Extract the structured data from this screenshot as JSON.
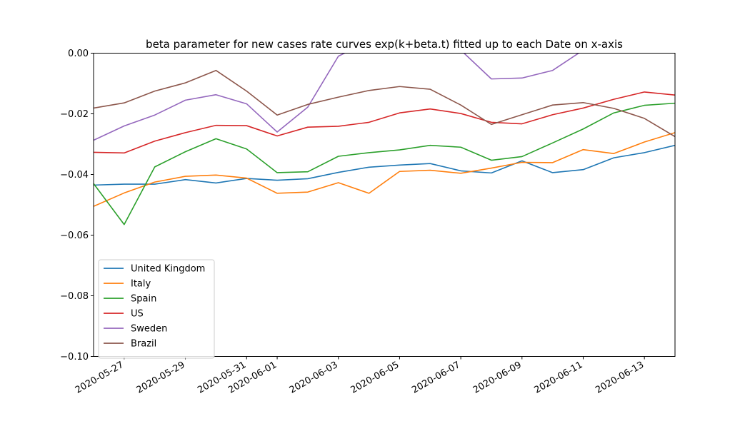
{
  "chart_data": {
    "type": "line",
    "title": "beta parameter for new cases rate curves exp(k+beta.t) fitted up to each Date on x-axis",
    "xlabel": "",
    "ylabel": "",
    "x": [
      "2020-05-26",
      "2020-05-27",
      "2020-05-28",
      "2020-05-29",
      "2020-05-30",
      "2020-05-31",
      "2020-06-01",
      "2020-06-02",
      "2020-06-03",
      "2020-06-04",
      "2020-06-05",
      "2020-06-06",
      "2020-06-07",
      "2020-06-08",
      "2020-06-09",
      "2020-06-10",
      "2020-06-11",
      "2020-06-12",
      "2020-06-13",
      "2020-06-14"
    ],
    "xlim": [
      "2020-05-26",
      "2020-06-14"
    ],
    "xticks": [
      "2020-05-27",
      "2020-05-29",
      "2020-05-31",
      "2020-06-01",
      "2020-06-03",
      "2020-06-05",
      "2020-06-07",
      "2020-06-09",
      "2020-06-11",
      "2020-06-13"
    ],
    "ylim": [
      -0.1,
      0.0
    ],
    "yticks": [
      "0.00",
      "−0.02",
      "−0.04",
      "−0.06",
      "−0.08",
      "−0.10"
    ],
    "ytick_values": [
      0.0,
      -0.02,
      -0.04,
      -0.06,
      -0.08,
      -0.1
    ],
    "grid": false,
    "legend_position": "lower-left",
    "series": [
      {
        "name": "United Kingdom",
        "color": "#1f77b4",
        "values": [
          -0.0435,
          -0.0432,
          -0.0432,
          -0.0417,
          -0.0428,
          -0.0413,
          -0.0419,
          -0.0414,
          -0.0393,
          -0.0376,
          -0.0369,
          -0.0364,
          -0.0388,
          -0.0395,
          -0.0355,
          -0.0394,
          -0.0384,
          -0.0345,
          -0.0328,
          -0.0304
        ]
      },
      {
        "name": "Italy",
        "color": "#ff7f0e",
        "values": [
          -0.0505,
          -0.0461,
          -0.0425,
          -0.0406,
          -0.0402,
          -0.0412,
          -0.0462,
          -0.0458,
          -0.0427,
          -0.0462,
          -0.039,
          -0.0386,
          -0.0396,
          -0.0379,
          -0.036,
          -0.0361,
          -0.0318,
          -0.0331,
          -0.0293,
          -0.0262
        ]
      },
      {
        "name": "Spain",
        "color": "#2ca02c",
        "values": [
          -0.043,
          -0.0565,
          -0.0375,
          -0.0325,
          -0.0282,
          -0.0316,
          -0.0394,
          -0.0391,
          -0.034,
          -0.0328,
          -0.0319,
          -0.0304,
          -0.031,
          -0.0353,
          -0.0341,
          -0.0296,
          -0.025,
          -0.0197,
          -0.0172,
          -0.0165
        ]
      },
      {
        "name": "US",
        "color": "#d62728",
        "values": [
          -0.0327,
          -0.0329,
          -0.029,
          -0.0262,
          -0.0238,
          -0.0239,
          -0.0273,
          -0.0244,
          -0.0241,
          -0.0228,
          -0.0197,
          -0.0184,
          -0.0199,
          -0.0228,
          -0.0233,
          -0.0203,
          -0.0181,
          -0.0152,
          -0.0128,
          -0.0138
        ]
      },
      {
        "name": "Sweden",
        "color": "#9467bd",
        "values": [
          -0.0287,
          -0.024,
          -0.0204,
          -0.0155,
          -0.0137,
          -0.0167,
          -0.026,
          -0.0178,
          -0.001,
          0.004,
          0.005,
          0.004,
          0.001,
          -0.0085,
          -0.0082,
          -0.0057,
          0.001,
          0.003,
          0.004,
          0.004
        ]
      },
      {
        "name": "Brazil",
        "color": "#8c564b",
        "values": [
          -0.0181,
          -0.0164,
          -0.0125,
          -0.0098,
          -0.0057,
          -0.0125,
          -0.0204,
          -0.0169,
          -0.0145,
          -0.0123,
          -0.011,
          -0.0119,
          -0.0171,
          -0.0235,
          -0.0203,
          -0.0171,
          -0.0163,
          -0.0182,
          -0.0215,
          -0.0275
        ]
      }
    ]
  }
}
